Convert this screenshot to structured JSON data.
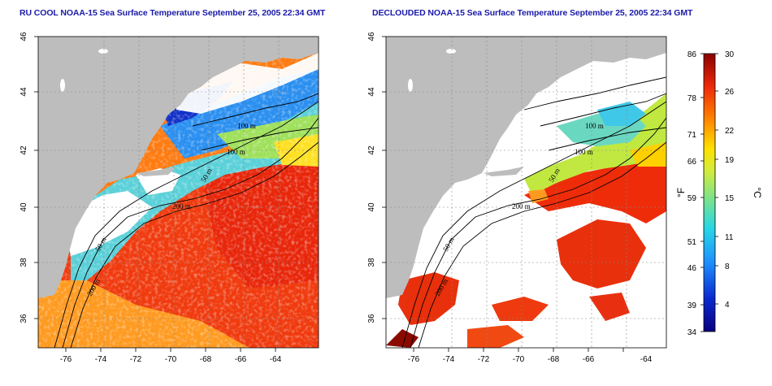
{
  "panels": [
    {
      "id": "left",
      "title": "RU COOL NOAA-15 Sea Surface Temperature September 25, 2005 22:34 GMT",
      "contour_labels": [
        "100 m",
        "100 m",
        "50 m",
        "200 m",
        "50 m",
        "200 m"
      ]
    },
    {
      "id": "right",
      "title": "DECLOUDED NOAA-15 Sea Surface Temperature September 25, 2005 22:34 GMT",
      "contour_labels": [
        "100 m",
        "100 m",
        "50 m",
        "200 m",
        "50 m",
        "200 m"
      ]
    }
  ],
  "axes": {
    "lon_ticks": [
      "-76",
      "-74",
      "-72",
      "-70",
      "-68",
      "-66",
      "-64"
    ],
    "lat_ticks": [
      "46",
      "44",
      "42",
      "40",
      "38",
      "36"
    ]
  },
  "colorbar": {
    "fahrenheit_ticks": [
      "86",
      "78",
      "71",
      "66",
      "59",
      "51",
      "46",
      "39",
      "34"
    ],
    "celsius_ticks": [
      "30",
      "26",
      "22",
      "19",
      "15",
      "11",
      "8",
      "4"
    ],
    "unit_f": "°F",
    "unit_c": "°C"
  },
  "colors": {
    "land": "#bdbdbd",
    "cloud": "#ffffff",
    "title": "#1a1aa8"
  }
}
